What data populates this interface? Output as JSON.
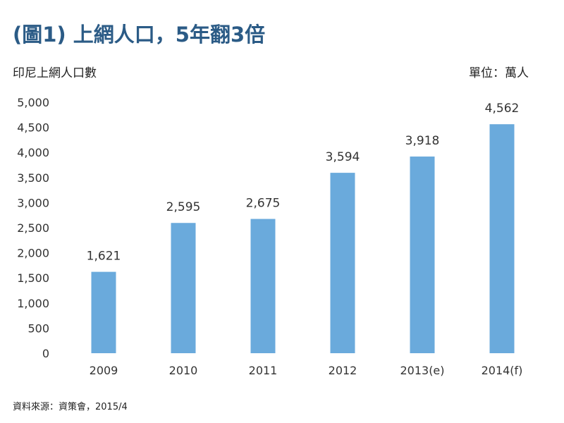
{
  "chart_data": {
    "type": "bar",
    "title": "(圖1) 上網人口，5年翻3倍",
    "ylabel": "印尼上網人口數",
    "unit": "單位：萬人",
    "source": "資料來源：資策會，2015/4",
    "categories": [
      "2009",
      "2010",
      "2011",
      "2012",
      "2013(e)",
      "2014(f)"
    ],
    "values": [
      1621,
      2595,
      2675,
      3594,
      3918,
      4562
    ],
    "value_labels": [
      "1,621",
      "2,595",
      "2,675",
      "3,594",
      "3,918",
      "4,562"
    ],
    "ylim": [
      0,
      5000
    ],
    "yticks": [
      0,
      500,
      1000,
      1500,
      2000,
      2500,
      3000,
      3500,
      4000,
      4500,
      5000
    ],
    "ytick_labels": [
      "0",
      "500",
      "1,000",
      "1,500",
      "2,000",
      "2,500",
      "3,000",
      "3,500",
      "4,000",
      "4,500",
      "5,000"
    ],
    "grid": false,
    "bar_color": "#6aaadc"
  }
}
